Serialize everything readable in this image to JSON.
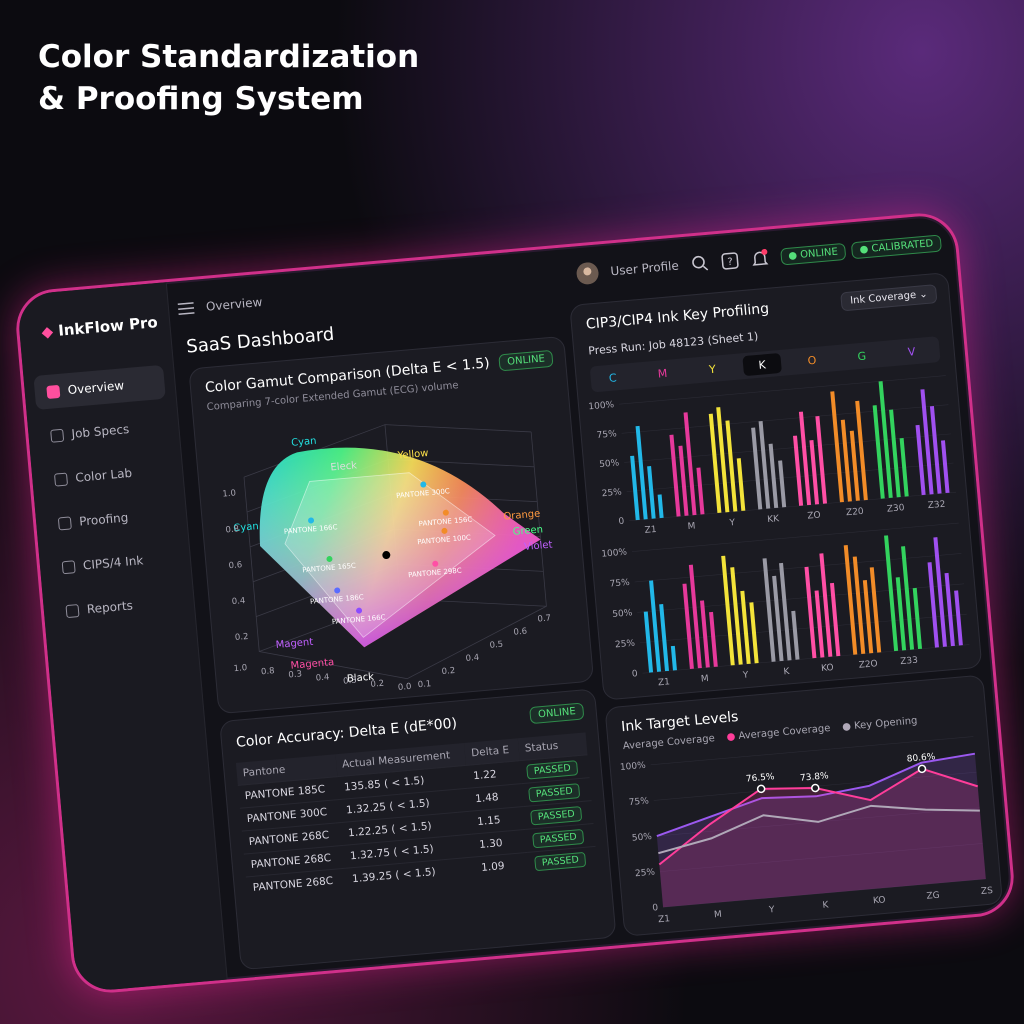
{
  "headline": [
    "Color Standardization",
    "& Proofing System"
  ],
  "sidebar": {
    "brand": "InkFlow Pro",
    "nav": [
      "Overview",
      "Job Specs",
      "Color Lab",
      "Proofing",
      "CIPS/4 Ink",
      "Reports"
    ]
  },
  "topbar": {
    "breadcrumb": "Overview",
    "user": "User Profile",
    "status": [
      "ONLINE",
      "CALIBRATED"
    ]
  },
  "dashboard_title": "SaaS Dashboard",
  "gamut": {
    "title": "Color Gamut Comparison (Delta E < 1.5)",
    "subtitle": "Comparing 7-color Extended Gamut (ECG) volume",
    "status": "ONLINE",
    "labels": [
      "Cyan",
      "Cyan",
      "Eleck",
      "Yellow",
      "Orange",
      "Green",
      "Violet",
      "Magent",
      "Magenta",
      "Black"
    ],
    "points": [
      "PANTONE 300C",
      "PANTONE 166C",
      "PANTONE 156C",
      "PANTONE 165C",
      "PANTONE 100C",
      "PANTONE 298C",
      "PANTONE 186C",
      "PANTONE 166C"
    ],
    "left_ticks": [
      "1.0",
      "0.8",
      "0.6",
      "0.4",
      "0.2"
    ],
    "front_ticks": [
      "1.0",
      "0.8",
      "0.3",
      "0.4",
      "0.3",
      "0.2",
      "0.0"
    ],
    "right_ticks": [
      "0.1",
      "0.2",
      "0.4",
      "0.5",
      "0.6",
      "0.7"
    ]
  },
  "accuracy": {
    "title": "Color Accuracy: Delta E (dE*00)",
    "status": "ONLINE",
    "table": {
      "header": [
        "Pantone",
        "Actual Measurement",
        "Delta E",
        "Status"
      ],
      "rows": [
        [
          "PANTONE 185C",
          "135.85 ( < 1.5)",
          "1.22",
          "PASSED"
        ],
        [
          "PANTONE 300C",
          "1.32.25 ( < 1.5)",
          "1.48",
          "PASSED"
        ],
        [
          "PANTONE 268C",
          "1.22.25 ( < 1.5)",
          "1.15",
          "PASSED"
        ],
        [
          "PANTONE 268C",
          "1.32.75 ( < 1.5)",
          "1.30",
          "PASSED"
        ],
        [
          "PANTONE 268C",
          "1.39.25 ( < 1.5)",
          "1.09",
          "PASSED"
        ]
      ]
    }
  },
  "profiling": {
    "title": "CIP3/CIP4 Ink Key Profiling",
    "dropdown": "Ink Coverage",
    "press_run": "Press Run: Job 48123 (Sheet 1)",
    "tabs": [
      {
        "label": "C",
        "color": "#22b8e8"
      },
      {
        "label": "M",
        "color": "#e6399b"
      },
      {
        "label": "Y",
        "color": "#f3e33a"
      },
      {
        "label": "K",
        "color": "#ffffff"
      },
      {
        "label": "O",
        "color": "#f28c28"
      },
      {
        "label": "G",
        "color": "#33d35e"
      },
      {
        "label": "V",
        "color": "#a050f0"
      }
    ],
    "active_tab": 3,
    "panels": [
      {
        "type": "bar",
        "ylim": [
          0,
          100
        ],
        "yticks": [
          {
            "value": 0,
            "label": "0"
          },
          {
            "value": 25,
            "label": "25%"
          },
          {
            "value": 50,
            "label": "50%"
          },
          {
            "value": 75,
            "label": "75%"
          },
          {
            "value": 100,
            "label": "100%"
          }
        ],
        "groups": [
          {
            "name": "Z1",
            "color": "#22b8e8",
            "values": [
              55,
              80,
              45,
              20
            ]
          },
          {
            "name": "M",
            "color": "#e6399b",
            "values": [
              70,
              60,
              88,
              40
            ]
          },
          {
            "name": "Y",
            "color": "#f3e33a",
            "values": [
              85,
              90,
              78,
              45
            ]
          },
          {
            "name": "KK",
            "color": "#9a9aa5",
            "values": [
              70,
              75,
              55,
              40
            ]
          },
          {
            "name": "ZO",
            "color": "#ff4fa5",
            "values": [
              60,
              80,
              55,
              75
            ]
          },
          {
            "name": "Z20",
            "color": "#f28c28",
            "values": [
              95,
              70,
              60,
              85
            ]
          },
          {
            "name": "Z30",
            "color": "#33d35e",
            "values": [
              80,
              100,
              75,
              50
            ]
          },
          {
            "name": "Z32",
            "color": "#a050f0",
            "values": [
              60,
              90,
              75,
              45
            ]
          }
        ]
      },
      {
        "type": "bar",
        "ylim": [
          0,
          100
        ],
        "yticks": [
          {
            "value": 0,
            "label": "0"
          },
          {
            "value": 25,
            "label": "25%"
          },
          {
            "value": 50,
            "label": "50%"
          },
          {
            "value": 75,
            "label": "75%"
          },
          {
            "value": 100,
            "label": "100%"
          }
        ],
        "groups": [
          {
            "name": "Z1",
            "color": "#22b8e8",
            "values": [
              50,
              75,
              55,
              20
            ]
          },
          {
            "name": "M",
            "color": "#e6399b",
            "values": [
              70,
              85,
              55,
              45
            ]
          },
          {
            "name": "Y",
            "color": "#f3e33a",
            "values": [
              90,
              80,
              60,
              50
            ]
          },
          {
            "name": "K",
            "color": "#9a9aa5",
            "values": [
              85,
              70,
              80,
              40
            ]
          },
          {
            "name": "KO",
            "color": "#ff4fa5",
            "values": [
              75,
              55,
              85,
              60
            ]
          },
          {
            "name": "Z2O",
            "color": "#f28c28",
            "values": [
              90,
              80,
              60,
              70
            ]
          },
          {
            "name": "Z33",
            "color": "#33d35e",
            "values": [
              95,
              60,
              85,
              50
            ]
          },
          {
            "name": null,
            "color": "#a050f0",
            "values": [
              70,
              90,
              60,
              45
            ]
          }
        ]
      }
    ]
  },
  "targets": {
    "type": "line",
    "title": "Ink Target Levels",
    "categories": [
      "Z1",
      "M",
      "Y",
      "K",
      "KO",
      "ZG",
      "ZS"
    ],
    "ylim": [
      0,
      100
    ],
    "yticks": [
      {
        "value": 0,
        "label": "0"
      },
      {
        "value": 25,
        "label": "25%"
      },
      {
        "value": 50,
        "label": "50%"
      },
      {
        "value": 75,
        "label": "75%"
      },
      {
        "value": 100,
        "label": "100%"
      }
    ],
    "series": [
      {
        "name": "Average Coverage",
        "color": "#9b59f0",
        "values": [
          50,
          60,
          70,
          68,
          72,
          85,
          88
        ]
      },
      {
        "name": "Average Coverage",
        "color": "#ff3d9a",
        "values": [
          30,
          55,
          76.5,
          73.8,
          62,
          80.6,
          65
        ],
        "value_labels": [
          null,
          null,
          "76.5%",
          "73.8%",
          null,
          "80.6%",
          null
        ]
      },
      {
        "name": "Key Opening",
        "color": "#b0a8b8",
        "values": [
          38,
          45,
          58,
          50,
          58,
          52,
          48
        ]
      }
    ]
  }
}
